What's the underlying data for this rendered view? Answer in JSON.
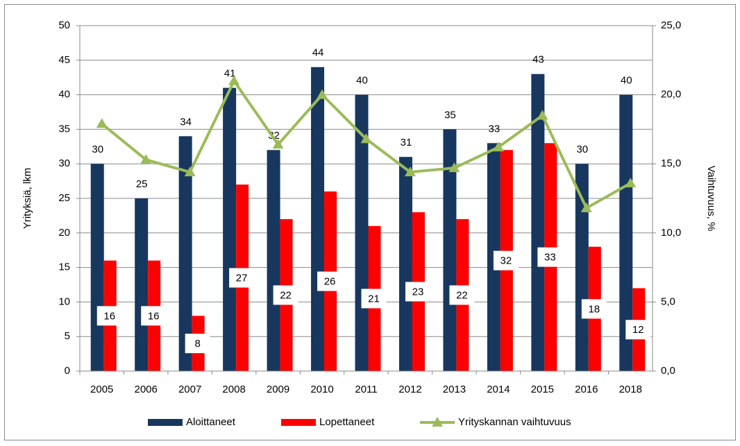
{
  "chart_data": {
    "type": "bar_line",
    "categories": [
      "2005",
      "2006",
      "2007",
      "2008",
      "2009",
      "2010",
      "2011",
      "2012",
      "2013",
      "2014",
      "2015",
      "2016",
      "2018"
    ],
    "series": [
      {
        "name": "Aloittaneet",
        "color": "#17375e",
        "values": [
          30,
          25,
          34,
          41,
          32,
          44,
          40,
          31,
          35,
          33,
          43,
          30,
          40
        ]
      },
      {
        "name": "Lopettaneet",
        "color": "#ff0000",
        "values": [
          16,
          16,
          8,
          27,
          22,
          26,
          21,
          23,
          22,
          32,
          33,
          18,
          12
        ]
      },
      {
        "name": "Yrityskannan vaihtuvuus",
        "color": "#9bbb59",
        "axis": "y2",
        "values": [
          17.9,
          15.3,
          14.4,
          21.0,
          16.4,
          20.0,
          16.8,
          14.4,
          14.7,
          16.2,
          18.5,
          11.8,
          13.6
        ]
      }
    ],
    "ylabel": "Yrityksiä, lkm",
    "y2label": "Vaihtuvuus, %",
    "ylim": [
      0,
      50
    ],
    "yticks": [
      0,
      5,
      10,
      15,
      20,
      25,
      30,
      35,
      40,
      45,
      50
    ],
    "y2lim": [
      0,
      25
    ],
    "y2ticks": [
      {
        "value": 0,
        "label": "0,0"
      },
      {
        "value": 5,
        "label": "5,0"
      },
      {
        "value": 10,
        "label": "10,0"
      },
      {
        "value": 15,
        "label": "15,0"
      },
      {
        "value": 20,
        "label": "20,0"
      },
      {
        "value": 25,
        "label": "25,0"
      }
    ],
    "grid": true,
    "legend": "bottom"
  }
}
